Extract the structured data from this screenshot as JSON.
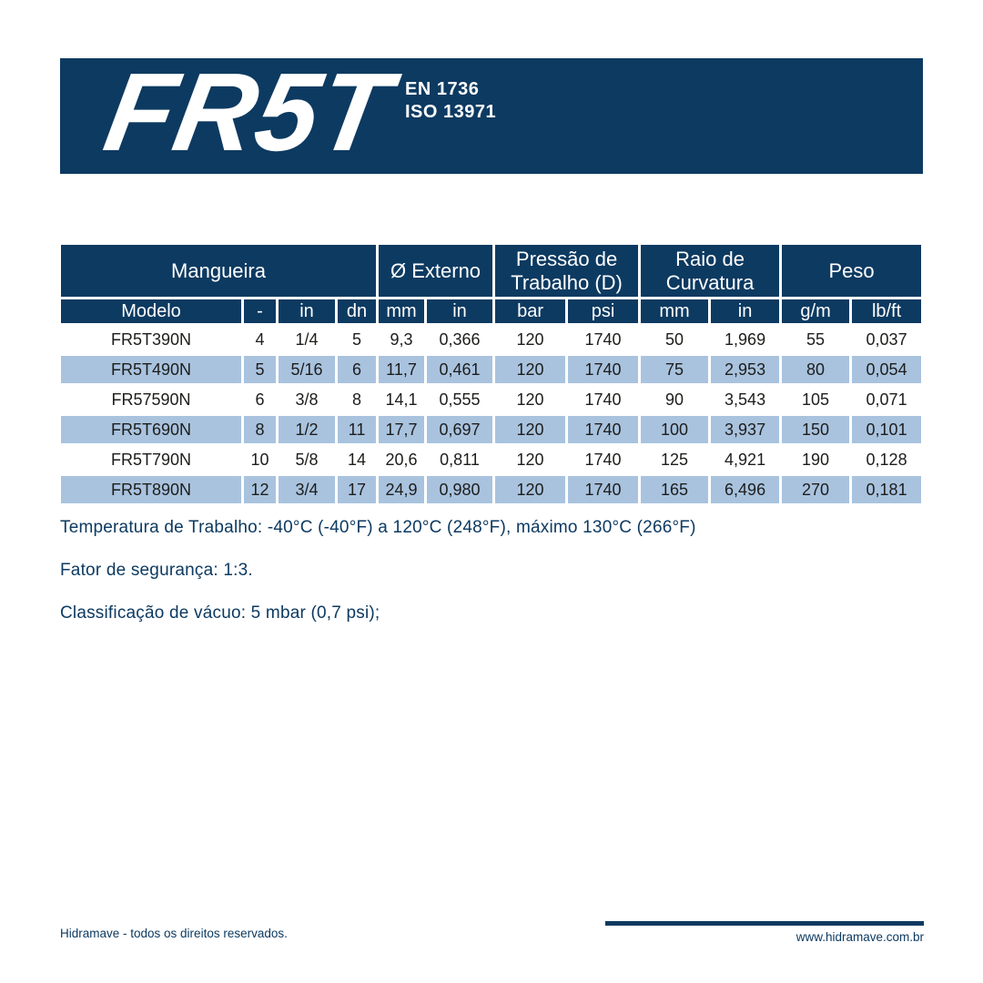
{
  "colors": {
    "navy": "#0d3a61",
    "row_alt": "#a9c3df",
    "body_text": "#1d1d1b",
    "background": "#ffffff"
  },
  "banner": {
    "logo": "FR5T",
    "standards": [
      "EN 1736",
      "ISO 13971"
    ]
  },
  "table": {
    "type": "table",
    "groups": [
      {
        "label": "Mangueira",
        "colspan": 4
      },
      {
        "label": "Ø Externo",
        "colspan": 2
      },
      {
        "label": "Pressão de Trabalho (D)",
        "colspan": 2
      },
      {
        "label": "Raio de Curvatura",
        "colspan": 2
      },
      {
        "label": "Peso",
        "colspan": 2
      }
    ],
    "columns": [
      "Modelo",
      "-",
      "in",
      "dn",
      "mm",
      "in",
      "bar",
      "psi",
      "mm",
      "in",
      "g/m",
      "lb/ft"
    ],
    "rows": [
      [
        "FR5T390N",
        "4",
        "1/4",
        "5",
        "9,3",
        "0,366",
        "120",
        "1740",
        "50",
        "1,969",
        "55",
        "0,037"
      ],
      [
        "FR5T490N",
        "5",
        "5/16",
        "6",
        "11,7",
        "0,461",
        "120",
        "1740",
        "75",
        "2,953",
        "80",
        "0,054"
      ],
      [
        "FR57590N",
        "6",
        "3/8",
        "8",
        "14,1",
        "0,555",
        "120",
        "1740",
        "90",
        "3,543",
        "105",
        "0,071"
      ],
      [
        "FR5T690N",
        "8",
        "1/2",
        "11",
        "17,7",
        "0,697",
        "120",
        "1740",
        "100",
        "3,937",
        "150",
        "0,101"
      ],
      [
        "FR5T790N",
        "10",
        "5/8",
        "14",
        "20,6",
        "0,811",
        "120",
        "1740",
        "125",
        "4,921",
        "190",
        "0,128"
      ],
      [
        "FR5T890N",
        "12",
        "3/4",
        "17",
        "24,9",
        "0,980",
        "120",
        "1740",
        "165",
        "6,496",
        "270",
        "0,181"
      ]
    ]
  },
  "notes": [
    "Temperatura de Trabalho: -40°C (-40°F) a 120°C (248°F), máximo 130°C (266°F)",
    "Fator de segurança: 1:3.",
    "Classificação de vácuo: 5 mbar (0,7 psi);"
  ],
  "footer": {
    "left": "Hidramave - todos os direitos reservados.",
    "right": "www.hidramave.com.br"
  }
}
